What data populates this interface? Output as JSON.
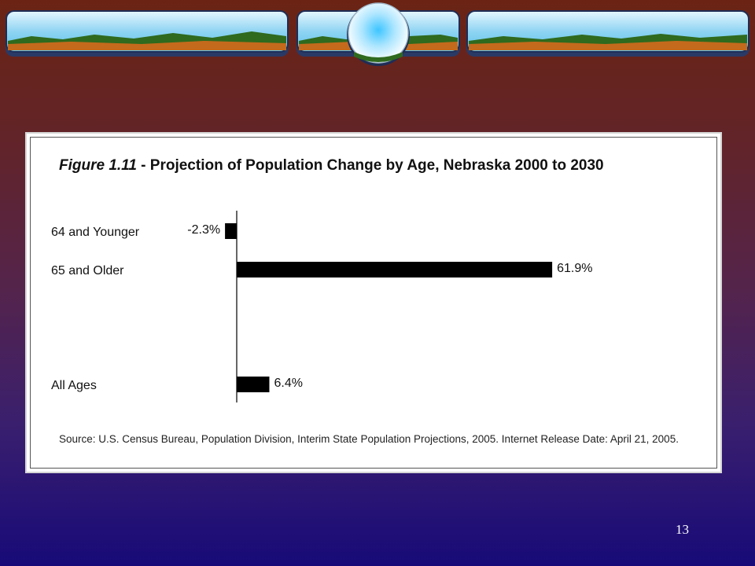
{
  "slide": {
    "number": "13"
  },
  "chart_data": {
    "type": "bar",
    "orientation": "horizontal",
    "title_prefix": "Figure 1.11",
    "title_rest": " - Projection of Population Change by Age, Nebraska 2000 to 2030",
    "categories": [
      "64 and Younger",
      "65 and Older",
      "All Ages"
    ],
    "values": [
      -2.3,
      61.9,
      6.4
    ],
    "value_labels": [
      "-2.3%",
      "61.9%",
      "6.4%"
    ],
    "xlim": [
      -4,
      70
    ],
    "grid": false,
    "legend": "none",
    "bar_color": "#000000",
    "source": "Source: U.S. Census Bureau, Population Division, Interim State Population Projections, 2005. Internet Release Date: April 21, 2005."
  }
}
